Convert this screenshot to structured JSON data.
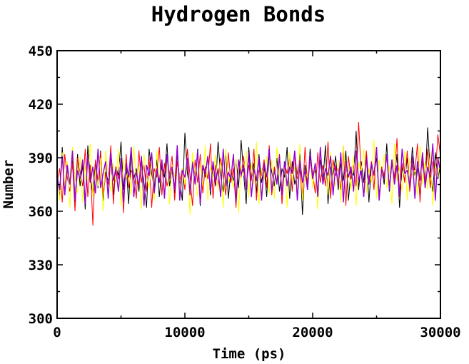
{
  "chart_data": {
    "type": "line",
    "title": "Hydrogen Bonds",
    "xlabel": "Time (ps)",
    "ylabel": "Number",
    "xlim": [
      0,
      30000
    ],
    "ylim": [
      300,
      450
    ],
    "xticks": [
      0,
      10000,
      20000,
      30000
    ],
    "xtick_labels": [
      "0",
      "10000",
      "20000",
      "30000"
    ],
    "yticks": [
      300,
      330,
      360,
      390,
      420,
      450
    ],
    "ytick_labels": [
      "300",
      "330",
      "360",
      "390",
      "420",
      "450"
    ],
    "grid": false,
    "legend": "none",
    "x": {
      "start": 0,
      "end": 30000,
      "step": 200
    },
    "series": [
      {
        "color": "#000000",
        "values": [
          378,
          368,
          396,
          371,
          383,
          375,
          389,
          365,
          392,
          374,
          386,
          361,
          397,
          379,
          370,
          388,
          373,
          394,
          366,
          382,
          377,
          391,
          369,
          385,
          380,
          399,
          372,
          387,
          364,
          393,
          378,
          384,
          371,
          390,
          376,
          362,
          395,
          381,
          373,
          389,
          368,
          386,
          379,
          398,
          374,
          383,
          370,
          392,
          377,
          366,
          404,
          381,
          372,
          388,
          376,
          395,
          363,
          385,
          379,
          391,
          369,
          386,
          374,
          399,
          380,
          371,
          394,
          367,
          383,
          377,
          389,
          373,
          400,
          381,
          364,
          396,
          378,
          387,
          370,
          392,
          376,
          385,
          368,
          393,
          382,
          374,
          390,
          371,
          384,
          379,
          396,
          367,
          388,
          375,
          381,
          392,
          358,
          386,
          373,
          395,
          379,
          383,
          370,
          389,
          376,
          397,
          364,
          385,
          380,
          391,
          372,
          387,
          377,
          394,
          366,
          383,
          380,
          405,
          372,
          388,
          376,
          393,
          365,
          386,
          381,
          390,
          369,
          384,
          375,
          398,
          371,
          387,
          379,
          392,
          362,
          385,
          377,
          390,
          373,
          396,
          380,
          384,
          368,
          389,
          376,
          407,
          382,
          371,
          393,
          378,
          386
        ]
      },
      {
        "color": "#ff0000",
        "values": [
          376,
          384,
          365,
          392,
          379,
          371,
          387,
          360,
          390,
          382,
          374,
          395,
          368,
          386,
          352,
          389,
          377,
          393,
          370,
          381,
          375,
          397,
          364,
          385,
          378,
          388,
          359,
          392,
          373,
          383,
          380,
          367,
          394,
          376,
          386,
          371,
          390,
          362,
          384,
          379,
          396,
          369,
          387,
          374,
          381,
          391,
          366,
          388,
          377,
          384,
          372,
          395,
          380,
          363,
          389,
          376,
          392,
          370,
          385,
          378,
          398,
          367,
          386,
          374,
          390,
          381,
          369,
          393,
          376,
          384,
          362,
          388,
          379,
          391,
          372,
          386,
          377,
          395,
          366,
          383,
          380,
          389,
          373,
          397,
          369,
          385,
          376,
          392,
          364,
          387,
          381,
          390,
          371,
          394,
          378,
          383,
          368,
          396,
          375,
          388,
          382,
          370,
          393,
          376,
          386,
          374,
          399,
          367,
          389,
          380,
          384,
          372,
          397,
          363,
          391,
          378,
          386,
          374,
          410,
          381,
          369,
          394,
          377,
          388,
          372,
          396,
          366,
          385,
          380,
          392,
          374,
          389,
          378,
          401,
          368,
          387,
          376,
          394,
          371,
          386,
          382,
          398,
          365,
          390,
          377,
          395,
          373,
          388,
          380,
          403,
          391
        ]
      },
      {
        "color": "#ffff00",
        "values": [
          381,
          366,
          393,
          374,
          388,
          362,
          396,
          379,
          370,
          391,
          365,
          385,
          377,
          398,
          368,
          383,
          374,
          390,
          360,
          394,
          380,
          371,
          387,
          376,
          395,
          363,
          389,
          378,
          384,
          369,
          397,
          375,
          386,
          361,
          392,
          380,
          373,
          388,
          366,
          394,
          377,
          383,
          370,
          391,
          364,
          386,
          379,
          396,
          372,
          384,
          375,
          390,
          358,
          393,
          381,
          368,
          387,
          374,
          397,
          366,
          385,
          379,
          392,
          371,
          388,
          362,
          395,
          376,
          383,
          373,
          390,
          359,
          386,
          380,
          394,
          368,
          387,
          375,
          399,
          364,
          384,
          378,
          391,
          370,
          389,
          367,
          396,
          381,
          374,
          388,
          362,
          393,
          377,
          385,
          371,
          398,
          366,
          382,
          379,
          390,
          373,
          387,
          361,
          395,
          376,
          384,
          369,
          393,
          380,
          374,
          389,
          365,
          397,
          378,
          386,
          372,
          391,
          363,
          388,
          381,
          395,
          370,
          384,
          376,
          400,
          367,
          389,
          379,
          392,
          373,
          386,
          364,
          398,
          377,
          385,
          371,
          394,
          366,
          390,
          380,
          383,
          369,
          397,
          375,
          388,
          372,
          393,
          363,
          386,
          379,
          392
        ]
      },
      {
        "color": "#9400d3",
        "values": [
          380,
          372,
          391,
          369,
          386,
          375,
          394,
          366,
          383,
          378,
          389,
          364,
          392,
          376,
          385,
          370,
          395,
          373,
          381,
          388,
          367,
          393,
          377,
          384,
          371,
          390,
          365,
          387,
          379,
          396,
          368,
          382,
          374,
          391,
          363,
          386,
          380,
          393,
          370,
          384,
          376,
          389,
          367,
          392,
          378,
          385,
          372,
          397,
          366,
          383,
          379,
          390,
          369,
          387,
          375,
          394,
          364,
          386,
          381,
          391,
          371,
          388,
          376,
          384,
          368,
          395,
          374,
          382,
          378,
          392,
          365,
          389,
          380,
          386,
          372,
          393,
          368,
          384,
          377,
          390,
          366,
          387,
          379,
          395,
          371,
          383,
          375,
          391,
          369,
          388,
          374,
          385,
          381,
          394,
          366,
          389,
          376,
          383,
          372,
          392,
          378,
          387,
          368,
          396,
          375,
          384,
          380,
          391,
          369,
          386,
          374,
          393,
          365,
          388,
          379,
          385,
          371,
          394,
          377,
          383,
          368,
          390,
          375,
          387,
          380,
          396,
          366,
          384,
          378,
          392,
          372,
          389,
          375,
          386,
          369,
          395,
          381,
          383,
          374,
          391,
          367,
          388,
          377,
          393,
          373,
          385,
          379,
          398,
          366,
          390,
          382
        ]
      }
    ]
  }
}
